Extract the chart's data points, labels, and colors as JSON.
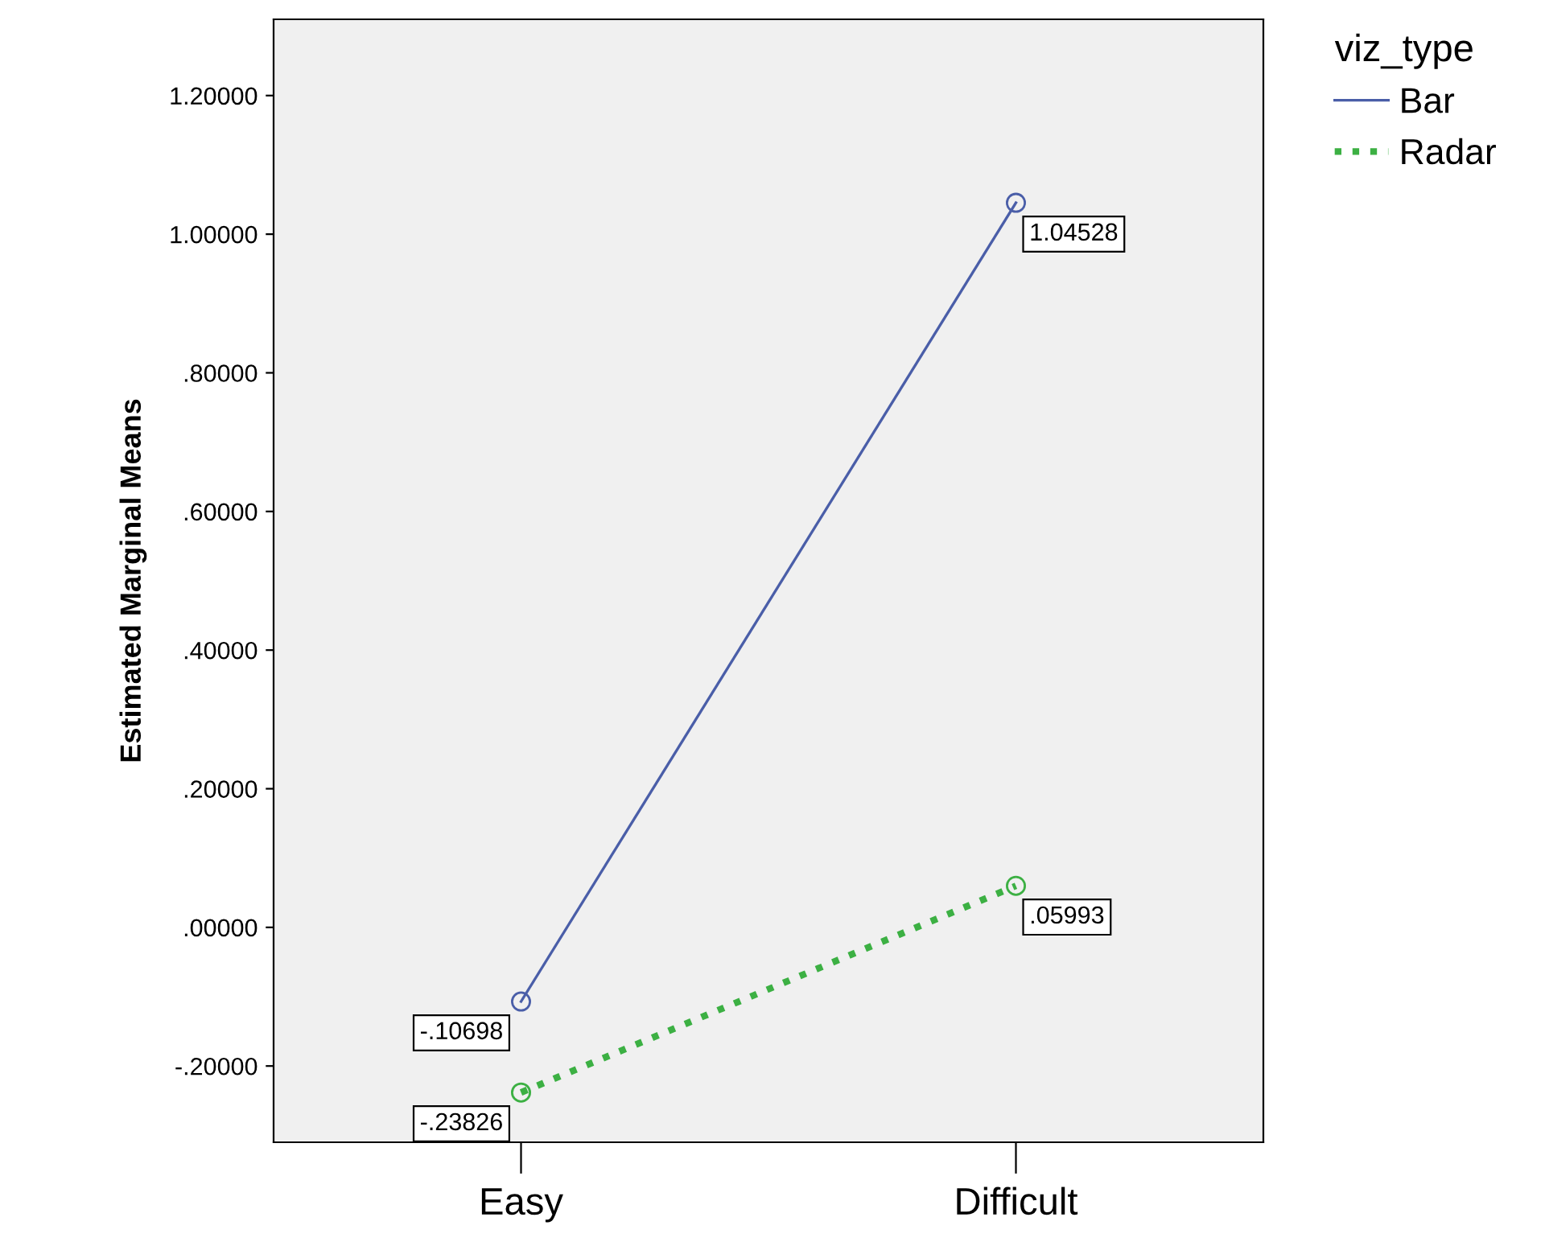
{
  "chart_data": {
    "type": "line",
    "categories": [
      "Easy",
      "Difficult"
    ],
    "ylabel": "Estimated Marginal Means",
    "legend_title": "viz_type",
    "legend": "top right",
    "grid": false,
    "marker": "circle",
    "ylim": [
      -0.31,
      1.31
    ],
    "yticks": [
      {
        "value": -0.2,
        "label": "-.20000"
      },
      {
        "value": 0,
        "label": ".00000"
      },
      {
        "value": 0.2,
        "label": ".20000"
      },
      {
        "value": 0.4,
        "label": ".40000"
      },
      {
        "value": 0.6,
        "label": ".60000"
      },
      {
        "value": 0.8,
        "label": ".80000"
      },
      {
        "value": 1.0,
        "label": "1.00000"
      },
      {
        "value": 1.2,
        "label": "1.20000"
      }
    ],
    "series": [
      {
        "name": "Bar",
        "color": "#4a5ea8",
        "line_style": "solid",
        "values": [
          -0.10698,
          1.04528
        ],
        "value_labels": [
          "-.10698",
          "1.04528"
        ]
      },
      {
        "name": "Radar",
        "color": "#3cb043",
        "line_style": "dotted",
        "values": [
          -0.23826,
          0.05993
        ],
        "value_labels": [
          "-.23826",
          ".05993"
        ]
      }
    ]
  }
}
